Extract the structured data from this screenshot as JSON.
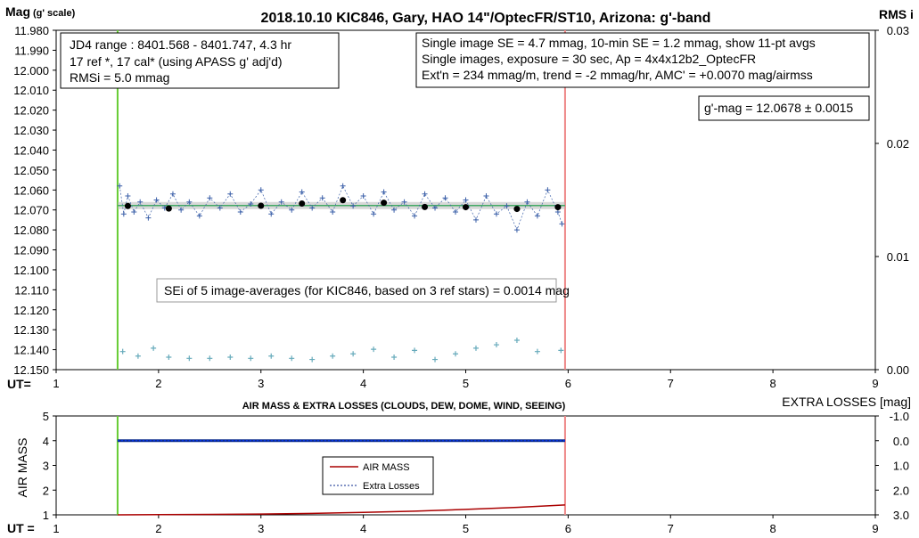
{
  "chart_data": [
    {
      "type": "scatter",
      "title": "2018.10.10 KIC846, Gary, HAO 14\"/OptecFR/ST10, Arizona: g'-band",
      "ylabel_main": "Mag",
      "ylabel_scale": "(g' scale)",
      "y2label": "RMS i",
      "xlabel": "UT=",
      "xlim": [
        1,
        9
      ],
      "ylim": [
        11.98,
        12.15
      ],
      "y_reversed": true,
      "y2lim": [
        0.0,
        0.03
      ],
      "x_ticks": [
        "1",
        "2",
        "3",
        "4",
        "5",
        "6",
        "7",
        "8",
        "9"
      ],
      "y_ticks": [
        "11.980",
        "11.990",
        "12.000",
        "12.010",
        "12.020",
        "12.030",
        "12.040",
        "12.050",
        "12.060",
        "12.070",
        "12.080",
        "12.090",
        "12.100",
        "12.110",
        "12.120",
        "12.130",
        "12.140",
        "12.150"
      ],
      "y2_ticks": [
        "0.03",
        "0.02",
        "0.01",
        "0.00"
      ],
      "annotations": {
        "box_left": [
          "JD4 range : 8401.568 - 8401.747,  4.3  hr",
          "17 ref *, 17 cal* (using APASS g' adj'd)",
          "RMSi = 5.0 mmag"
        ],
        "box_right": [
          "Single image SE = 4.7 mmag, 10-min SE = 1.2 mmag, show  11-pt avgs",
          "Single images, exposure = 30 sec, Ap = 4x4x12b2_OptecFR",
          "Ext'n = 234 mmag/m, trend =  -2 mmag/hr, AMC' = +0.0070 mag/airmss"
        ],
        "gmag_box": "g'-mag = 12.0678 ± 0.0015",
        "sei_box": "SEi of 5 image-averages (for KIC846, based on 3 ref stars) = 0.0014 mag"
      },
      "vlines": [
        {
          "x": 1.6,
          "color": "#66cc33"
        },
        {
          "x": 5.97,
          "color": "#ee8888"
        }
      ],
      "mean_mag": 12.0678,
      "series": [
        {
          "name": "image-averages",
          "color": "#000000",
          "x": [
            1.7,
            2.1,
            3.0,
            3.4,
            3.8,
            4.2,
            4.6,
            5.0,
            5.5,
            5.9
          ],
          "y": [
            12.068,
            12.0693,
            12.0679,
            12.0668,
            12.0651,
            12.0664,
            12.0685,
            12.0686,
            12.0695,
            12.0686
          ]
        },
        {
          "name": "single-images",
          "color": "#3a5fa8",
          "x": [
            1.62,
            1.66,
            1.7,
            1.76,
            1.82,
            1.9,
            1.98,
            2.06,
            2.14,
            2.22,
            2.3,
            2.4,
            2.5,
            2.6,
            2.7,
            2.8,
            2.9,
            3.0,
            3.1,
            3.2,
            3.3,
            3.4,
            3.5,
            3.6,
            3.7,
            3.8,
            3.9,
            4.0,
            4.1,
            4.2,
            4.3,
            4.4,
            4.5,
            4.6,
            4.7,
            4.8,
            4.9,
            5.0,
            5.1,
            5.2,
            5.3,
            5.4,
            5.5,
            5.6,
            5.7,
            5.8,
            5.9,
            5.94
          ],
          "y": [
            12.058,
            12.072,
            12.063,
            12.071,
            12.066,
            12.074,
            12.065,
            12.069,
            12.062,
            12.07,
            12.066,
            12.073,
            12.064,
            12.069,
            12.062,
            12.071,
            12.067,
            12.06,
            12.072,
            12.066,
            12.07,
            12.061,
            12.069,
            12.064,
            12.071,
            12.058,
            12.068,
            12.063,
            12.072,
            12.061,
            12.07,
            12.066,
            12.073,
            12.062,
            12.069,
            12.064,
            12.071,
            12.065,
            12.075,
            12.063,
            12.072,
            12.068,
            12.08,
            12.066,
            12.073,
            12.06,
            12.071,
            12.077
          ]
        },
        {
          "name": "RMS i",
          "color": "#66aabb",
          "axis": "y2",
          "x": [
            1.65,
            1.8,
            1.95,
            2.1,
            2.3,
            2.5,
            2.7,
            2.9,
            3.1,
            3.3,
            3.5,
            3.7,
            3.9,
            4.1,
            4.3,
            4.5,
            4.7,
            4.9,
            5.1,
            5.3,
            5.5,
            5.7,
            5.93
          ],
          "y": [
            0.0016,
            0.0012,
            0.0019,
            0.0011,
            0.001,
            0.001,
            0.0011,
            0.001,
            0.0012,
            0.001,
            0.0009,
            0.0012,
            0.0014,
            0.0018,
            0.0011,
            0.0017,
            0.0009,
            0.0014,
            0.0019,
            0.0022,
            0.0026,
            0.0016,
            0.0017
          ]
        }
      ]
    },
    {
      "type": "line",
      "title": "AIR MASS & EXTRA LOSSES (CLOUDS, DEW, DOME, WIND, SEEING)",
      "ylabel": "AIR MASS",
      "y2label": "EXTRA LOSSES [mag]",
      "xlabel": "UT =",
      "xlim": [
        1,
        9
      ],
      "ylim": [
        1,
        5
      ],
      "y2lim": [
        -1.0,
        3.0
      ],
      "y2_reversed": true,
      "x_ticks": [
        "1",
        "2",
        "3",
        "4",
        "5",
        "6",
        "7",
        "8",
        "9"
      ],
      "y_ticks": [
        "1",
        "2",
        "3",
        "4",
        "5"
      ],
      "y2_ticks": [
        "-1.0",
        "0.0",
        "1.0",
        "2.0",
        "3.0"
      ],
      "legend": {
        "placement": "center",
        "entries": [
          "AIR MASS",
          "Extra Losses"
        ]
      },
      "vlines": [
        {
          "x": 1.6,
          "color": "#66cc33"
        },
        {
          "x": 5.97,
          "color": "#ee8888"
        }
      ],
      "series": [
        {
          "name": "AIR MASS",
          "color": "#aa0000",
          "axis": "y",
          "x": [
            1.6,
            2.0,
            2.5,
            3.0,
            3.5,
            4.0,
            4.5,
            5.0,
            5.5,
            5.97
          ],
          "y": [
            1.0,
            1.01,
            1.02,
            1.03,
            1.06,
            1.1,
            1.15,
            1.22,
            1.3,
            1.4
          ]
        },
        {
          "name": "Extra Losses",
          "color": "#0a2a8c",
          "axis": "y2",
          "style": "dashed",
          "x": [
            1.6,
            5.97
          ],
          "y": [
            0.0,
            0.0
          ]
        }
      ]
    }
  ]
}
